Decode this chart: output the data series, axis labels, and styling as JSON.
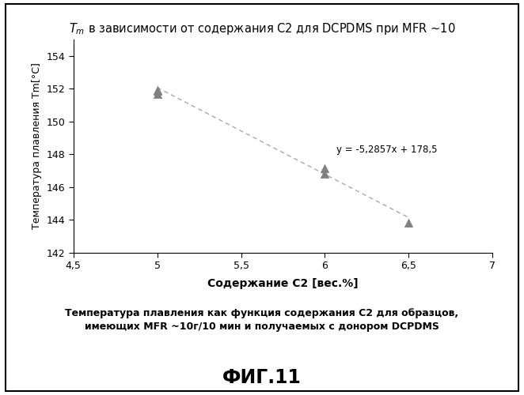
{
  "title_rest": " в зависимости от содержания C2 для DCPDMS при MFR ~10",
  "xlabel": "Содержание C2 [вес.%]",
  "ylabel": "Температура плавления Tm[°С]",
  "xlim": [
    4.5,
    7.0
  ],
  "ylim": [
    142,
    155
  ],
  "xticks": [
    4.5,
    5.0,
    5.5,
    6.0,
    6.5,
    7.0
  ],
  "yticks": [
    142,
    144,
    146,
    148,
    150,
    152,
    154
  ],
  "xtick_labels": [
    "4,5",
    "5",
    "5,5",
    "6",
    "6,5",
    "7"
  ],
  "ytick_labels": [
    "142",
    "144",
    "146",
    "148",
    "150",
    "152",
    "154"
  ],
  "data_x": [
    5.0,
    5.0,
    5.0,
    6.0,
    6.0,
    6.5
  ],
  "data_y": [
    151.7,
    151.9,
    151.85,
    147.15,
    146.8,
    143.85
  ],
  "trendline_slope": -5.2857,
  "trendline_intercept": 178.5,
  "trendline_x": [
    5.0,
    6.5
  ],
  "equation_text": "y = -5,2857x + 178,5",
  "equation_x": 6.07,
  "equation_y": 148.3,
  "marker_color": "#808080",
  "line_color": "#aaaaaa",
  "caption_line1": "Температура плавления как функция содержания C2 для образцов,",
  "caption_line2": "имеющих MFR ~10г/10 мин и получаемых с донором DCPDMS",
  "fig_label": "ФИГ.11",
  "background_color": "#ffffff",
  "border_color": "#000000"
}
